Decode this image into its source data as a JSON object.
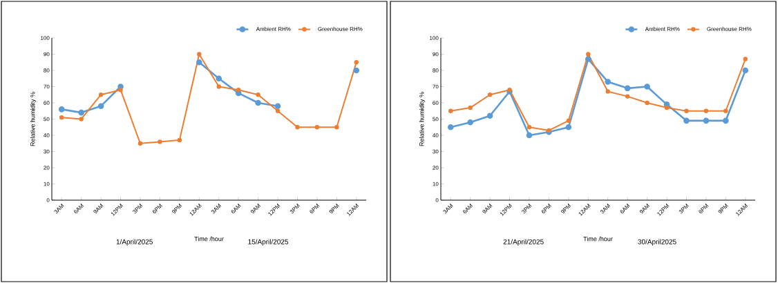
{
  "chart_data": [
    {
      "type": "line",
      "xlabel": "Time /hour",
      "ylabel": "Relative humidity %",
      "categories": [
        "3AM",
        "6AM",
        "9AM",
        "12PM",
        "3PM",
        "6PM",
        "9PM",
        "12AM",
        "3AM",
        "6AM",
        "9AM",
        "12PM",
        "3PM",
        "6PM",
        "9PM",
        "12AM"
      ],
      "series": [
        {
          "name": "Ambient RH%",
          "color": "#5b9bd5",
          "values": [
            56,
            54,
            58,
            70,
            null,
            null,
            null,
            85,
            75,
            66,
            60,
            58,
            null,
            null,
            null,
            80
          ]
        },
        {
          "name": "Greenhouse RH%",
          "color": "#ed7d31",
          "values": [
            51,
            50,
            65,
            68,
            35,
            36,
            37,
            90,
            70,
            68,
            65,
            55,
            45,
            45,
            45,
            85
          ]
        }
      ],
      "ylim": [
        0,
        100
      ],
      "yticks": [
        0,
        10,
        20,
        30,
        40,
        50,
        60,
        70,
        80,
        90,
        100
      ],
      "legend": "top right",
      "marker": "circle",
      "annotations": [
        "1/April/2025",
        "15/April/2025"
      ]
    },
    {
      "type": "line",
      "xlabel": "Time /hour",
      "ylabel": "Relative humidity %",
      "categories": [
        "3AM",
        "6AM",
        "9AM",
        "12PM",
        "3PM",
        "6PM",
        "9PM",
        "12AM",
        "3AM",
        "6AM",
        "9AM",
        "12PM",
        "3PM",
        "6PM",
        "9PM",
        "12AM"
      ],
      "series": [
        {
          "name": "Ambient RH%",
          "color": "#5b9bd5",
          "values": [
            45,
            48,
            52,
            67,
            40,
            42,
            45,
            87,
            73,
            69,
            70,
            59,
            49,
            49,
            49,
            80
          ]
        },
        {
          "name": "Greenhouse RH%",
          "color": "#ed7d31",
          "values": [
            55,
            57,
            65,
            68,
            45,
            43,
            49,
            90,
            67,
            64,
            60,
            57,
            55,
            55,
            55,
            87
          ]
        }
      ],
      "ylim": [
        0,
        100
      ],
      "yticks": [
        0,
        10,
        20,
        30,
        40,
        50,
        60,
        70,
        80,
        90,
        100
      ],
      "legend": "top right",
      "marker": "circle",
      "annotations": [
        "21/April/2025",
        "30/April2025"
      ]
    }
  ]
}
